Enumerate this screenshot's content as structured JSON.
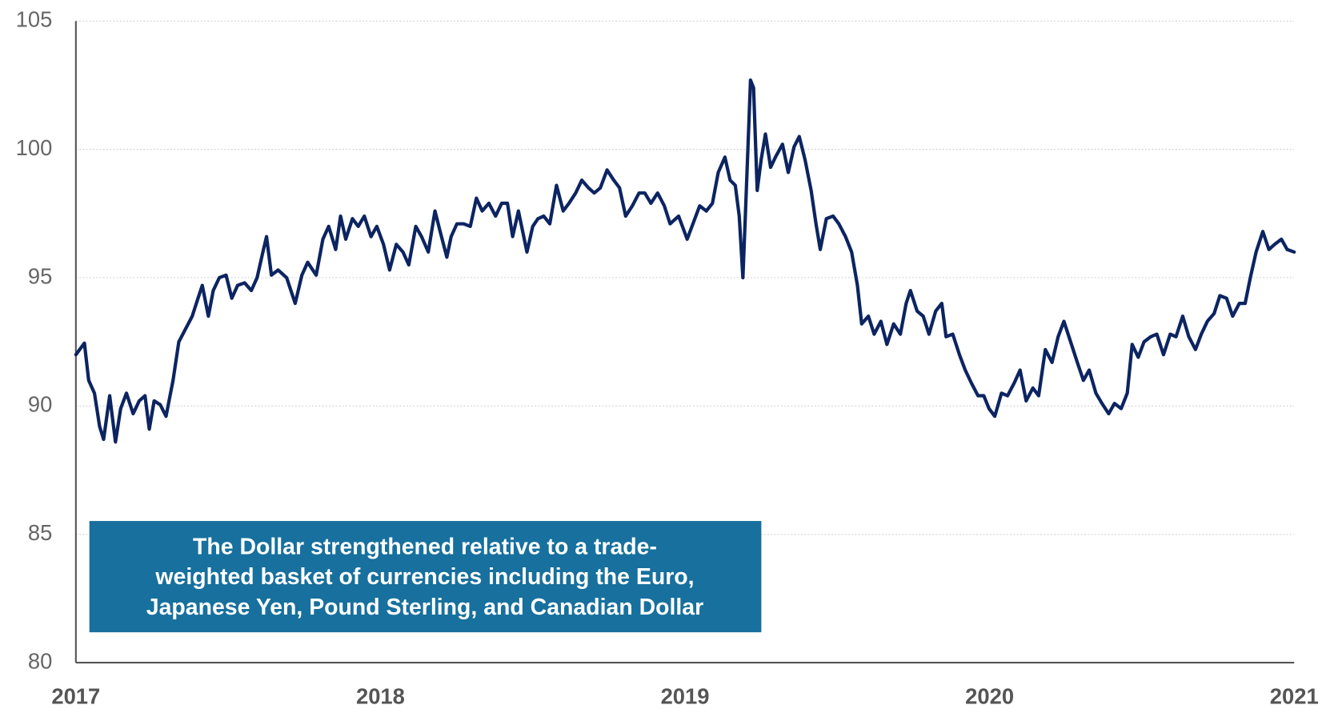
{
  "chart_data": {
    "type": "line",
    "xlim": [
      2017,
      2021
    ],
    "xticks": [
      2017,
      2018,
      2019,
      2020,
      2021
    ],
    "ylim": [
      80,
      105
    ],
    "yticks": [
      80,
      85,
      90,
      95,
      100,
      105
    ],
    "grid": true,
    "annotation": [
      "The Dollar strengthened relative to a trade-",
      "weighted basket of currencies including the Euro,",
      "Japanese Yen, Pound Sterling, and Canadian Dollar"
    ],
    "x": [
      2017.0,
      2017.028,
      2017.042,
      2017.061,
      2017.078,
      2017.091,
      2017.111,
      2017.13,
      2017.147,
      2017.166,
      2017.188,
      2017.208,
      2017.227,
      2017.241,
      2017.257,
      2017.277,
      2017.296,
      2017.319,
      2017.338,
      2017.36,
      2017.382,
      2017.401,
      2017.415,
      2017.435,
      2017.451,
      2017.471,
      2017.493,
      2017.512,
      2017.531,
      2017.554,
      2017.576,
      2017.595,
      2017.614,
      2017.626,
      2017.642,
      2017.664,
      2017.692,
      2017.72,
      2017.742,
      2017.761,
      2017.789,
      2017.811,
      2017.83,
      2017.853,
      2017.869,
      2017.886,
      2017.908,
      2017.927,
      2017.947,
      2017.969,
      2017.988,
      2018.01,
      2018.03,
      2018.052,
      2018.074,
      2018.093,
      2018.116,
      2018.135,
      2018.157,
      2018.179,
      2018.196,
      2018.218,
      2018.232,
      2018.251,
      2018.273,
      2018.295,
      2018.315,
      2018.334,
      2018.356,
      2018.378,
      2018.398,
      2018.417,
      2018.434,
      2018.453,
      2018.481,
      2018.5,
      2018.517,
      2018.536,
      2018.556,
      2018.578,
      2018.6,
      2018.619,
      2018.641,
      2018.661,
      2018.683,
      2018.702,
      2018.722,
      2018.744,
      2018.766,
      2018.785,
      2018.805,
      2018.827,
      2018.849,
      2018.868,
      2018.888,
      2018.91,
      2018.932,
      2018.951,
      2018.979,
      2019.007,
      2019.026,
      2019.048,
      2019.07,
      2019.09,
      2019.109,
      2019.131,
      2019.148,
      2019.165,
      2019.178,
      2019.19,
      2019.198,
      2019.207,
      2019.215,
      2019.225,
      2019.237,
      2019.25,
      2019.264,
      2019.281,
      2019.297,
      2019.32,
      2019.339,
      2019.358,
      2019.375,
      2019.394,
      2019.414,
      2019.43,
      2019.444,
      2019.464,
      2019.486,
      2019.505,
      2019.527,
      2019.547,
      2019.566,
      2019.58,
      2019.602,
      2019.621,
      2019.643,
      2019.663,
      2019.685,
      2019.707,
      2019.726,
      2019.74,
      2019.762,
      2019.782,
      2019.801,
      2019.823,
      2019.843,
      2019.857,
      2019.879,
      2019.901,
      2019.92,
      2019.94,
      2019.962,
      2019.981,
      2019.998,
      2020.017,
      2020.039,
      2020.059,
      2020.081,
      2020.1,
      2020.12,
      2020.142,
      2020.161,
      2020.183,
      2020.205,
      2020.225,
      2020.244,
      2020.266,
      2020.288,
      2020.308,
      2020.327,
      2020.349,
      2020.369,
      2020.391,
      2020.41,
      2020.432,
      2020.452,
      2020.468,
      2020.488,
      2020.507,
      2020.529,
      2020.549,
      2020.571,
      2020.593,
      2020.612,
      2020.634,
      2020.654,
      2020.676,
      2020.695,
      2020.715,
      2020.737,
      2020.756,
      2020.778,
      2020.798,
      2020.82,
      2020.839,
      2020.856,
      2020.875,
      2020.897,
      2020.917,
      2020.936,
      2020.958,
      2020.977,
      2021.0
    ],
    "series": [
      {
        "color": "#0c2461",
        "values": [
          92.0,
          92.45,
          91.0,
          90.5,
          89.2,
          88.7,
          90.4,
          88.6,
          89.9,
          90.5,
          89.7,
          90.2,
          90.4,
          89.1,
          90.2,
          90.05,
          89.6,
          91.0,
          92.5,
          93.0,
          93.5,
          94.2,
          94.7,
          93.5,
          94.5,
          95.0,
          95.1,
          94.2,
          94.7,
          94.8,
          94.5,
          95.0,
          96.0,
          96.6,
          95.1,
          95.3,
          95.0,
          94.0,
          95.1,
          95.6,
          95.1,
          96.5,
          97.0,
          96.1,
          97.4,
          96.5,
          97.3,
          97.0,
          97.4,
          96.6,
          97.0,
          96.3,
          95.3,
          96.3,
          96.0,
          95.5,
          97.0,
          96.6,
          96.0,
          97.6,
          96.8,
          95.8,
          96.6,
          97.1,
          97.1,
          97.0,
          98.1,
          97.6,
          97.9,
          97.4,
          97.9,
          97.9,
          96.6,
          97.6,
          96.0,
          97.0,
          97.3,
          97.4,
          97.1,
          98.6,
          97.6,
          97.9,
          98.3,
          98.8,
          98.5,
          98.3,
          98.5,
          99.2,
          98.8,
          98.5,
          97.4,
          97.8,
          98.3,
          98.3,
          97.9,
          98.3,
          97.8,
          97.1,
          97.4,
          96.5,
          97.1,
          97.8,
          97.6,
          97.9,
          99.1,
          99.7,
          98.8,
          98.6,
          97.4,
          95.0,
          97.4,
          100.2,
          102.7,
          102.4,
          98.4,
          99.6,
          100.6,
          99.3,
          99.7,
          100.2,
          99.1,
          100.1,
          100.5,
          99.6,
          98.4,
          97.1,
          96.1,
          97.3,
          97.4,
          97.1,
          96.6,
          96.0,
          94.7,
          93.2,
          93.5,
          92.8,
          93.3,
          92.4,
          93.2,
          92.8,
          94.0,
          94.5,
          93.7,
          93.5,
          92.8,
          93.7,
          94.0,
          92.7,
          92.8,
          92.0,
          91.4,
          90.9,
          90.4,
          90.4,
          89.9,
          89.6,
          90.5,
          90.4,
          90.9,
          91.4,
          90.2,
          90.7,
          90.4,
          92.2,
          91.7,
          92.7,
          93.3,
          92.5,
          91.7,
          91.0,
          91.4,
          90.5,
          90.1,
          89.7,
          90.1,
          89.9,
          90.5,
          92.4,
          91.9,
          92.5,
          92.7,
          92.8,
          92.0,
          92.8,
          92.7,
          93.5,
          92.7,
          92.2,
          92.8,
          93.3,
          93.6,
          94.3,
          94.2,
          93.5,
          94.0,
          94.0,
          95.0,
          96.0,
          96.8,
          96.1,
          96.3,
          96.5,
          96.1,
          96.0
        ]
      }
    ]
  }
}
